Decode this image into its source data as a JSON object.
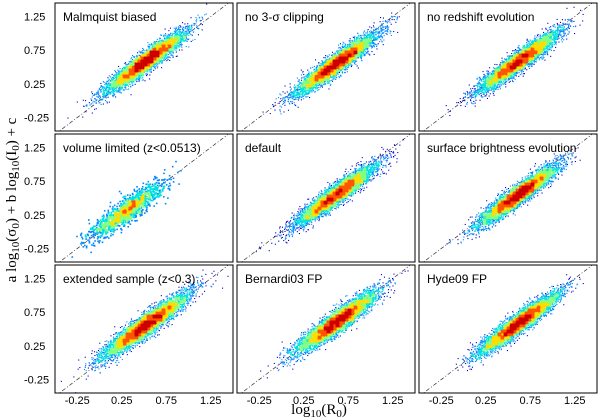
{
  "figure": {
    "xlabel_main": "log",
    "xlabel_sub": "10",
    "xlabel_rest": "(R",
    "xlabel_sub2": "0",
    "xlabel_close": ")",
    "ylabel_a": "a log",
    "ylabel_sub1": "10",
    "ylabel_b": "(σ",
    "ylabel_sub2": "0",
    "ylabel_c": ") + b log",
    "ylabel_sub3": "10",
    "ylabel_d": "(I",
    "ylabel_sub4": "0",
    "ylabel_e": ") + c"
  },
  "chart_data": {
    "type": "scatter",
    "layout": "3x3 grid of density-colored scatter panels, shared axes",
    "xlabel": "log10(R0)",
    "ylabel": "a log10(σ0) + b log10(I0) + c",
    "xlim": [
      -0.5,
      1.5
    ],
    "ylim": [
      -0.45,
      1.45
    ],
    "xticks": [
      "-0.25",
      "0.25",
      "0.75",
      "1.25"
    ],
    "xtick_values": [
      -0.25,
      0.25,
      0.75,
      1.25
    ],
    "yticks": [
      "1.25",
      "0.75",
      "0.25",
      "-0.25"
    ],
    "ytick_values": [
      1.25,
      0.75,
      0.25,
      -0.25
    ],
    "reference_line": "y = x (dash-dot)",
    "colormap": [
      "#0000cc",
      "#0088ff",
      "#00e0e0",
      "#80ff80",
      "#ffdd00",
      "#ff5500",
      "#cc0000"
    ],
    "panels": [
      {
        "title": "Malmquist biased",
        "center": [
          0.52,
          0.58
        ],
        "spread_major": 0.3,
        "spread_minor": 0.055,
        "n_points": 6000,
        "sparse": false
      },
      {
        "title": "no 3-σ clipping",
        "center": [
          0.62,
          0.55
        ],
        "spread_major": 0.3,
        "spread_minor": 0.055,
        "n_points": 6000,
        "sparse": false
      },
      {
        "title": "no redshift evolution",
        "center": [
          0.62,
          0.58
        ],
        "spread_major": 0.3,
        "spread_minor": 0.055,
        "n_points": 6000,
        "sparse": false
      },
      {
        "title": "volume limited (z<0.0513)",
        "center": [
          0.3,
          0.3
        ],
        "spread_major": 0.28,
        "spread_minor": 0.07,
        "n_points": 1400,
        "sparse": true
      },
      {
        "title": "default",
        "center": [
          0.62,
          0.55
        ],
        "spread_major": 0.3,
        "spread_minor": 0.055,
        "n_points": 6000,
        "sparse": false
      },
      {
        "title": "surface brightness evolution",
        "center": [
          0.62,
          0.55
        ],
        "spread_major": 0.3,
        "spread_minor": 0.055,
        "n_points": 6000,
        "sparse": false
      },
      {
        "title": "extended sample (z<0.3)",
        "center": [
          0.52,
          0.55
        ],
        "spread_major": 0.33,
        "spread_minor": 0.06,
        "n_points": 6000,
        "sparse": false
      },
      {
        "title": "Bernardi03 FP",
        "center": [
          0.62,
          0.6
        ],
        "spread_major": 0.3,
        "spread_minor": 0.06,
        "n_points": 6000,
        "sparse": false
      },
      {
        "title": "Hyde09 FP",
        "center": [
          0.62,
          0.58
        ],
        "spread_major": 0.3,
        "spread_minor": 0.055,
        "n_points": 6000,
        "sparse": false
      }
    ]
  }
}
